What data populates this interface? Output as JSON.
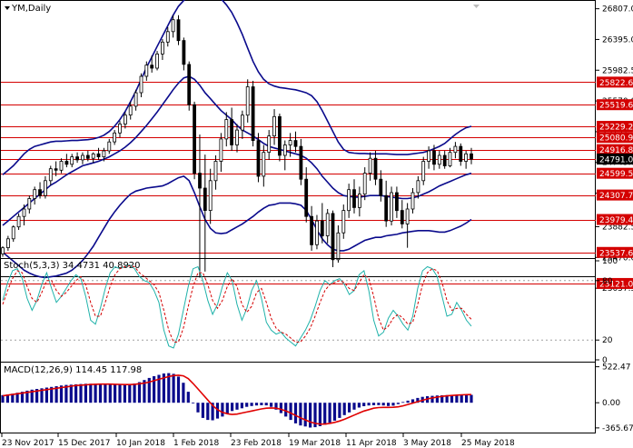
{
  "chart_data": [
    {
      "type": "candlestick",
      "title": "YM,Daily",
      "ylim": [
        23230,
        26900
      ],
      "y_ticks": [
        26807.0,
        26395.0,
        25982.5,
        25570.0,
        25157.5,
        24745.0,
        24332.5,
        23882.5,
        23470.0,
        23057.5
      ],
      "levels": [
        25822.6,
        25519.6,
        25229.2,
        25080.9,
        24916.8,
        24791.0,
        24599.5,
        24307.7,
        23979.4,
        23537.6,
        23121.0
      ],
      "level_labels": [
        "25822.6",
        "25519.6",
        "25229.2",
        "25080.9",
        "24916.8",
        "24791.0",
        "24599.5",
        "24307.7",
        "23979.4",
        "23537.6",
        "23121.0"
      ],
      "current_price": "24791.0",
      "candles": [
        [
          23520,
          23620,
          23480,
          23600
        ],
        [
          23600,
          23760,
          23560,
          23720
        ],
        [
          23720,
          23900,
          23680,
          23880
        ],
        [
          23880,
          24060,
          23840,
          24020
        ],
        [
          24020,
          24180,
          23900,
          24120
        ],
        [
          24120,
          24300,
          24060,
          24260
        ],
        [
          24260,
          24420,
          24180,
          24380
        ],
        [
          24380,
          24480,
          24260,
          24300
        ],
        [
          24300,
          24560,
          24260,
          24500
        ],
        [
          24500,
          24700,
          24440,
          24660
        ],
        [
          24660,
          24760,
          24560,
          24640
        ],
        [
          24640,
          24800,
          24600,
          24760
        ],
        [
          24760,
          24860,
          24680,
          24720
        ],
        [
          24720,
          24860,
          24680,
          24820
        ],
        [
          24820,
          24880,
          24740,
          24780
        ],
        [
          24780,
          24880,
          24720,
          24840
        ],
        [
          24840,
          24900,
          24760,
          24800
        ],
        [
          24800,
          24880,
          24740,
          24860
        ],
        [
          24860,
          24940,
          24780,
          24820
        ],
        [
          24820,
          24940,
          24760,
          24900
        ],
        [
          24900,
          25060,
          24860,
          25020
        ],
        [
          25020,
          25180,
          24980,
          25140
        ],
        [
          25140,
          25300,
          25080,
          25260
        ],
        [
          25260,
          25420,
          25200,
          25380
        ],
        [
          25380,
          25560,
          25320,
          25500
        ],
        [
          25500,
          25720,
          25440,
          25680
        ],
        [
          25680,
          25940,
          25620,
          25900
        ],
        [
          25900,
          26100,
          25840,
          26050
        ],
        [
          26050,
          26180,
          25950,
          26010
        ],
        [
          26010,
          26240,
          25980,
          26200
        ],
        [
          26200,
          26400,
          26120,
          26360
        ],
        [
          26360,
          26560,
          26300,
          26500
        ],
        [
          26500,
          26720,
          26420,
          26660
        ],
        [
          26660,
          26720,
          26320,
          26380
        ],
        [
          26380,
          26420,
          25980,
          26060
        ],
        [
          26060,
          26100,
          25440,
          25520
        ],
        [
          25520,
          25560,
          24520,
          24600
        ],
        [
          24600,
          25120,
          23200,
          24400
        ],
        [
          24400,
          24850,
          23280,
          24100
        ],
        [
          24100,
          24660,
          23920,
          24500
        ],
        [
          24500,
          24840,
          24380,
          24760
        ],
        [
          24760,
          25140,
          24620,
          25060
        ],
        [
          25060,
          25420,
          24960,
          25320
        ],
        [
          25320,
          25480,
          24900,
          24980
        ],
        [
          24980,
          25260,
          24880,
          25180
        ],
        [
          25180,
          25440,
          25060,
          25380
        ],
        [
          25380,
          25860,
          25280,
          25760
        ],
        [
          25760,
          25840,
          24960,
          25040
        ],
        [
          25040,
          25140,
          24480,
          24560
        ],
        [
          24560,
          24980,
          24420,
          24880
        ],
        [
          24880,
          25180,
          24780,
          25100
        ],
        [
          25100,
          25460,
          24980,
          25360
        ],
        [
          25360,
          25400,
          24760,
          24840
        ],
        [
          24840,
          25040,
          24640,
          24980
        ],
        [
          24980,
          25140,
          24820,
          25040
        ],
        [
          25040,
          25160,
          24880,
          24960
        ],
        [
          24960,
          25060,
          24440,
          24520
        ],
        [
          24520,
          24680,
          23940,
          24020
        ],
        [
          24020,
          24160,
          23560,
          23640
        ],
        [
          23640,
          24040,
          23580,
          23960
        ],
        [
          23960,
          24200,
          23660,
          23760
        ],
        [
          23760,
          24120,
          23660,
          24060
        ],
        [
          24060,
          24100,
          23340,
          23440
        ],
        [
          23440,
          23900,
          23400,
          23800
        ],
        [
          23800,
          24180,
          23720,
          24100
        ],
        [
          24100,
          24460,
          24000,
          24380
        ],
        [
          24380,
          24520,
          24060,
          24140
        ],
        [
          24140,
          24420,
          24020,
          24320
        ],
        [
          24320,
          24680,
          24240,
          24600
        ],
        [
          24600,
          24880,
          24500,
          24800
        ],
        [
          24800,
          24900,
          24440,
          24520
        ],
        [
          24520,
          24640,
          24220,
          24300
        ],
        [
          24300,
          24500,
          23880,
          23960
        ],
        [
          23960,
          24420,
          23900,
          24340
        ],
        [
          24340,
          24420,
          24000,
          24100
        ],
        [
          24100,
          24240,
          23860,
          23920
        ],
        [
          23920,
          24200,
          23600,
          24120
        ],
        [
          24120,
          24400,
          24060,
          24340
        ],
        [
          24340,
          24560,
          24260,
          24500
        ],
        [
          24500,
          24820,
          24440,
          24760
        ],
        [
          24760,
          24960,
          24660,
          24900
        ],
        [
          24900,
          24980,
          24640,
          24720
        ],
        [
          24720,
          24900,
          24660,
          24840
        ],
        [
          24840,
          24900,
          24660,
          24700
        ],
        [
          24700,
          24940,
          24680,
          24880
        ],
        [
          24880,
          25020,
          24800,
          24960
        ],
        [
          24960,
          25000,
          24700,
          24760
        ],
        [
          24760,
          24900,
          24660,
          24860
        ],
        [
          24860,
          24940,
          24720,
          24791
        ]
      ],
      "bb_upper": [
        24580,
        24640,
        24700,
        24780,
        24860,
        24920,
        24960,
        24980,
        25000,
        25020,
        25030,
        25030,
        25035,
        25040,
        25040,
        25045,
        25050,
        25060,
        25080,
        25110,
        25160,
        25230,
        25320,
        25430,
        25560,
        25700,
        25860,
        26020,
        26160,
        26300,
        26440,
        26580,
        26720,
        26840,
        26920,
        26980,
        27000,
        27020,
        27040,
        27030,
        27000,
        26940,
        26860,
        26760,
        26620,
        26460,
        26280,
        26100,
        25960,
        25860,
        25800,
        25770,
        25750,
        25740,
        25730,
        25720,
        25700,
        25680,
        25640,
        25560,
        25440,
        25300,
        25160,
        25020,
        24920,
        24880,
        24870,
        24865,
        24865,
        24860,
        24860,
        24860,
        24860,
        24855,
        24850,
        24850,
        24850,
        24860,
        24870,
        24880,
        24900,
        24930,
        24960,
        25000,
        25060,
        25120,
        25170,
        25210,
        25230
      ],
      "bb_middle": [
        23900,
        23960,
        24020,
        24080,
        24140,
        24200,
        24260,
        24320,
        24380,
        24440,
        24480,
        24530,
        24580,
        24620,
        24660,
        24700,
        24720,
        24740,
        24760,
        24790,
        24820,
        24860,
        24900,
        24950,
        25010,
        25080,
        25160,
        25240,
        25330,
        25420,
        25520,
        25620,
        25720,
        25810,
        25880,
        25900,
        25860,
        25780,
        25680,
        25600,
        25520,
        25440,
        25380,
        25320,
        25240,
        25180,
        25140,
        25100,
        25050,
        25000,
        24960,
        24940,
        24920,
        24900,
        24880,
        24860,
        24840,
        24800,
        24740,
        24660,
        24560,
        24480,
        24400,
        24340,
        24300,
        24290,
        24280,
        24280,
        24290,
        24300,
        24300,
        24300,
        24290,
        24280,
        24270,
        24260,
        24260,
        24270,
        24290,
        24320,
        24350,
        24390,
        24430,
        24460,
        24490,
        24520,
        24550,
        24580,
        24599.5
      ],
      "bb_lower": [
        23540,
        23480,
        23420,
        23360,
        23300,
        23260,
        23230,
        23210,
        23200,
        23210,
        23220,
        23240,
        23260,
        23300,
        23360,
        23430,
        23520,
        23620,
        23740,
        23860,
        23980,
        24080,
        24170,
        24250,
        24320,
        24360,
        24380,
        24400,
        24410,
        24420,
        24430,
        24460,
        24500,
        24540,
        24560,
        24500,
        24340,
        24150,
        23980,
        23860,
        23800,
        23790,
        23800,
        23840,
        23880,
        23920,
        23970,
        24020,
        24080,
        24130,
        24170,
        24180,
        24200,
        24200,
        24200,
        24190,
        24170,
        24100,
        23980,
        23840,
        23720,
        23640,
        23580,
        23560,
        23560,
        23580,
        23620,
        23660,
        23700,
        23720,
        23740,
        23740,
        23760,
        23770,
        23780,
        23800,
        23810,
        23820,
        23830,
        23830,
        23830,
        23820,
        23810,
        23810,
        23830,
        23860,
        23890,
        23930,
        23979.4
      ]
    },
    {
      "type": "line",
      "title": "Stoch(5,3,3) 34.4731 40.8920",
      "ylim": [
        0,
        100
      ],
      "y_ticks": [
        100,
        80,
        20,
        0
      ],
      "levels": [
        80,
        20
      ],
      "series": [
        {
          "values": [
            60,
            78,
            90,
            92,
            82,
            62,
            50,
            60,
            76,
            88,
            72,
            58,
            64,
            72,
            80,
            86,
            82,
            64,
            40,
            36,
            52,
            72,
            88,
            94,
            92,
            94,
            96,
            92,
            84,
            80,
            78,
            70,
            58,
            30,
            14,
            12,
            26,
            50,
            74,
            92,
            94,
            80,
            60,
            46,
            56,
            74,
            88,
            80,
            56,
            40,
            52,
            70,
            80,
            62,
            38,
            30,
            26,
            28,
            22,
            18,
            14,
            22,
            30,
            40,
            54,
            70,
            80,
            76,
            80,
            82,
            76,
            66,
            70,
            86,
            90,
            70,
            40,
            24,
            28,
            42,
            50,
            44,
            36,
            30,
            44,
            72,
            90,
            94,
            92,
            84,
            64,
            44,
            46,
            58,
            50,
            40,
            34
          ]
        },
        {
          "values": [
            56,
            70,
            82,
            90,
            88,
            74,
            62,
            58,
            68,
            80,
            80,
            70,
            64,
            68,
            74,
            80,
            84,
            76,
            58,
            44,
            44,
            58,
            74,
            86,
            92,
            94,
            95,
            94,
            88,
            84,
            80,
            76,
            68,
            50,
            30,
            18,
            18,
            32,
            54,
            74,
            88,
            88,
            76,
            60,
            52,
            60,
            74,
            82,
            74,
            56,
            48,
            54,
            68,
            72,
            58,
            42,
            32,
            28,
            26,
            22,
            18,
            18,
            24,
            32,
            44,
            58,
            70,
            76,
            78,
            80,
            78,
            72,
            70,
            78,
            86,
            82,
            64,
            42,
            30,
            34,
            42,
            46,
            42,
            36,
            38,
            56,
            76,
            88,
            92,
            90,
            78,
            60,
            50,
            52,
            52,
            46,
            40.89
          ]
        }
      ]
    },
    {
      "type": "bar",
      "title": "MACD(12,26,9) 114.45 117.98",
      "ylim": [
        -420,
        570
      ],
      "y_ticks": [
        522.47,
        0.0,
        -365.67
      ],
      "x_tick_labels": [
        "23 Nov 2017",
        "15 Dec 2017",
        "10 Jan 2018",
        "1 Feb 2018",
        "23 Feb 2018",
        "19 Mar 2018",
        "11 Apr 2018",
        "3 May 2018",
        "25 May 2018"
      ],
      "values": [
        110,
        120,
        130,
        145,
        160,
        175,
        190,
        200,
        210,
        220,
        230,
        240,
        250,
        258,
        262,
        268,
        272,
        275,
        276,
        275,
        274,
        272,
        268,
        262,
        260,
        262,
        268,
        280,
        300,
        330,
        360,
        385,
        405,
        425,
        430,
        420,
        380,
        290,
        160,
        0,
        -140,
        -220,
        -250,
        -255,
        -230,
        -200,
        -160,
        -120,
        -100,
        -80,
        -60,
        -48,
        -40,
        -35,
        -38,
        -60,
        -100,
        -150,
        -200,
        -250,
        -300,
        -330,
        -345,
        -360,
        -355,
        -340,
        -320,
        -290,
        -260,
        -220,
        -180,
        -140,
        -100,
        -70,
        -50,
        -40,
        -36,
        -34,
        -40,
        -48,
        -42,
        -20,
        10,
        30,
        50,
        70,
        85,
        95,
        100,
        105,
        108,
        110,
        112,
        114,
        116,
        118,
        114.45
      ],
      "signal": [
        100,
        110,
        120,
        130,
        140,
        150,
        160,
        170,
        180,
        190,
        200,
        210,
        220,
        230,
        240,
        250,
        255,
        260,
        265,
        268,
        270,
        270,
        270,
        268,
        266,
        264,
        264,
        268,
        275,
        285,
        300,
        320,
        340,
        360,
        380,
        395,
        400,
        390,
        350,
        280,
        200,
        120,
        40,
        -40,
        -100,
        -140,
        -160,
        -170,
        -165,
        -150,
        -135,
        -120,
        -105,
        -90,
        -80,
        -75,
        -80,
        -95,
        -120,
        -150,
        -185,
        -220,
        -250,
        -280,
        -300,
        -310,
        -310,
        -300,
        -285,
        -265,
        -240,
        -210,
        -180,
        -150,
        -120,
        -100,
        -80,
        -70,
        -68,
        -68,
        -66,
        -60,
        -45,
        -25,
        -5,
        15,
        35,
        55,
        70,
        82,
        92,
        100,
        106,
        110,
        114,
        117,
        117.98
      ]
    }
  ]
}
